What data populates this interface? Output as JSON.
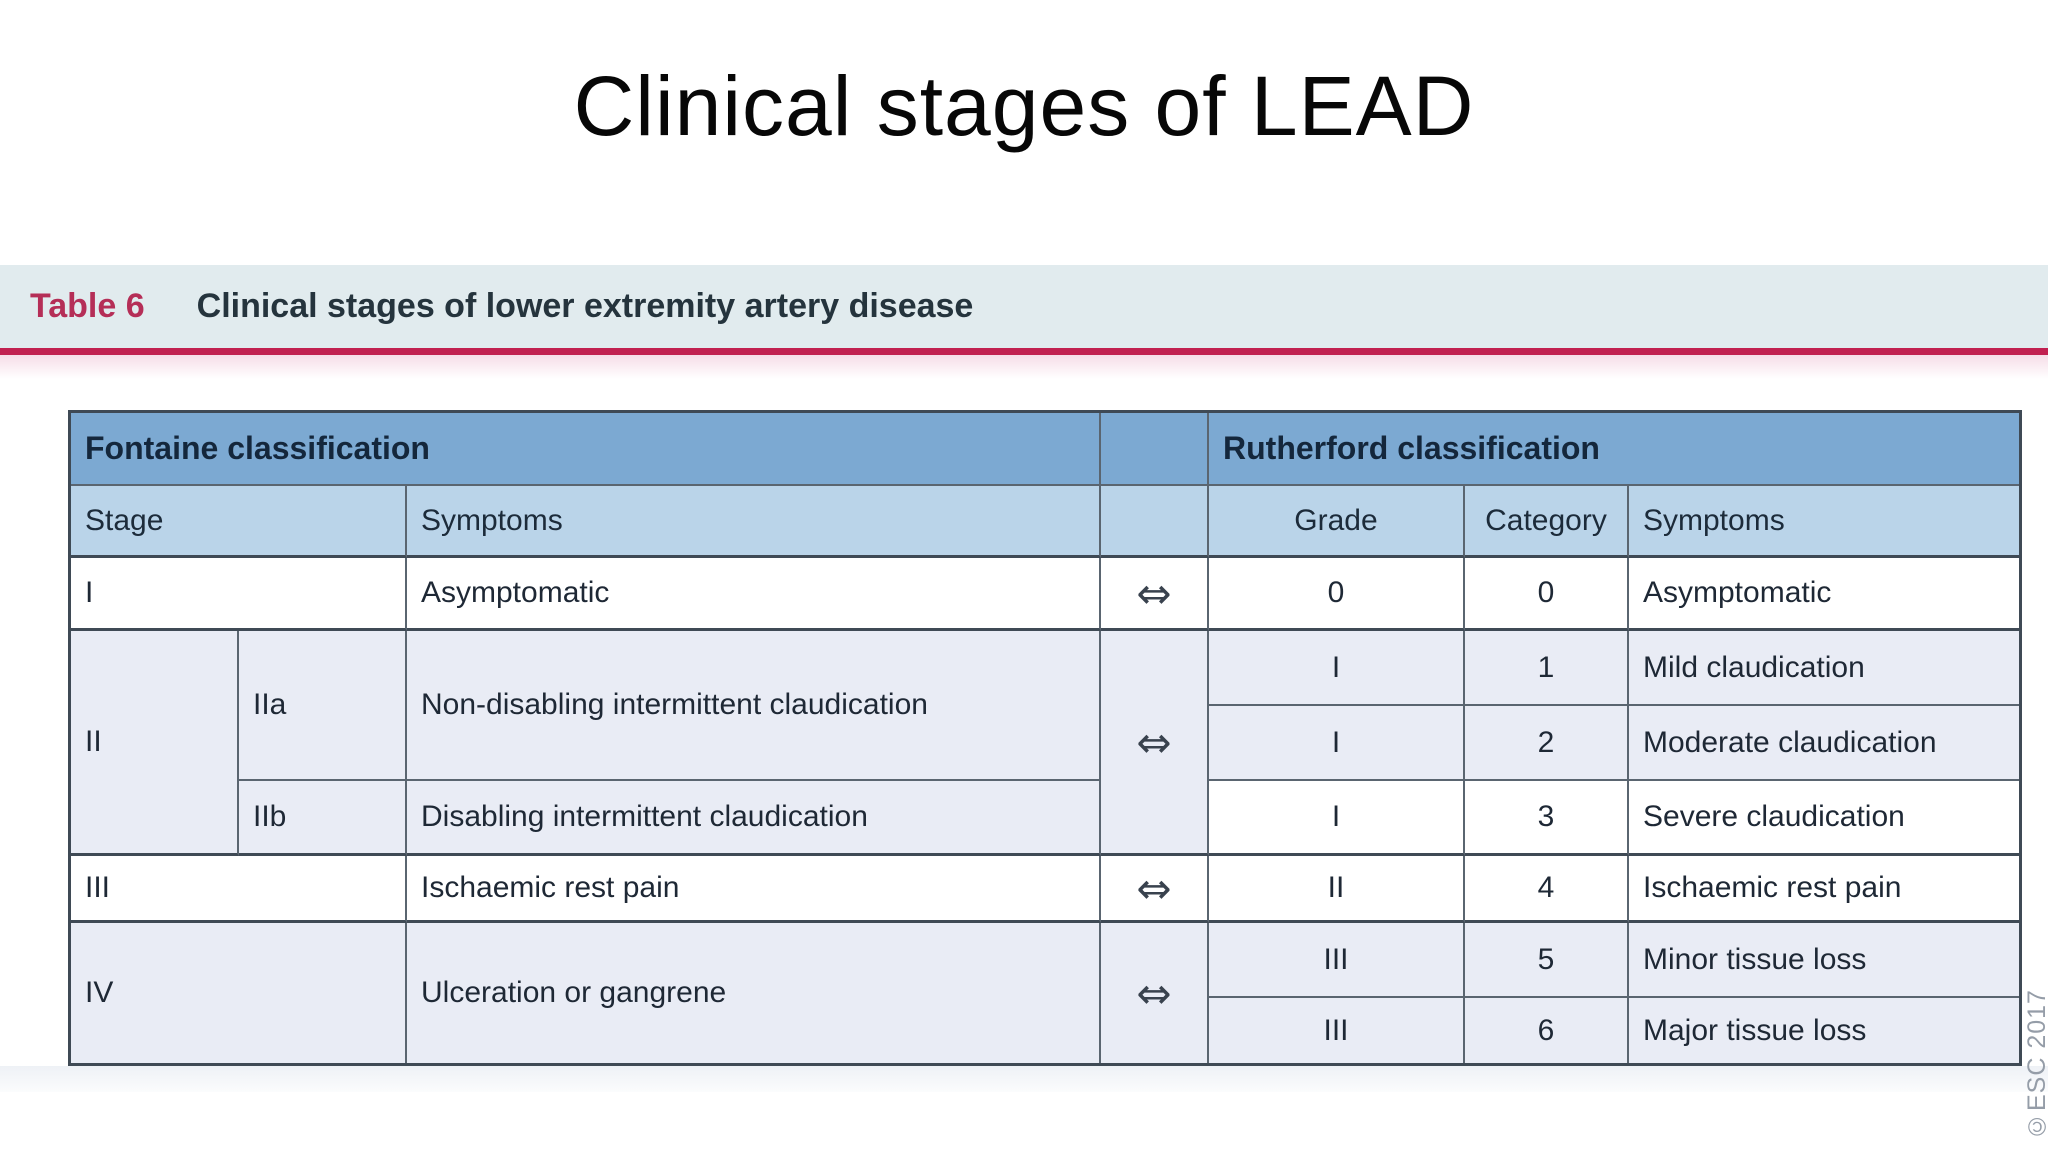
{
  "slide": {
    "title": "Clinical stages of LEAD"
  },
  "figure": {
    "caption_label": "Table 6",
    "caption_text": "Clinical stages of lower extremity artery disease",
    "copyright": "©ESC 2017",
    "arrow": "⇔",
    "colors": {
      "accent_red": "#c12050",
      "caption_label_red": "#b52e57",
      "caption_band_bg": "#e1ebee",
      "header_blue": "#7ca9d2",
      "subheader_blue": "#bad4e9",
      "row_tint_lavender": "#e9ecf5",
      "grid_line": "#4b5561",
      "copyright_gray": "#959da8"
    },
    "table": {
      "fontaine": {
        "header": "Fontaine classification",
        "col_headers": {
          "stage": "Stage",
          "symptoms": "Symptoms"
        },
        "rows": [
          {
            "stage": "I",
            "sub": "",
            "symptoms": "Asymptomatic"
          },
          {
            "stage": "II",
            "sub": "IIa",
            "symptoms": "Non-disabling intermittent claudication"
          },
          {
            "stage": "",
            "sub": "IIb",
            "symptoms": "Disabling intermittent claudication"
          },
          {
            "stage": "III",
            "sub": "",
            "symptoms": "Ischaemic rest pain"
          },
          {
            "stage": "IV",
            "sub": "",
            "symptoms": "Ulceration or gangrene"
          }
        ]
      },
      "rutherford": {
        "header": "Rutherford classification",
        "col_headers": {
          "grade": "Grade",
          "category": "Category",
          "symptoms": "Symptoms"
        },
        "rows": [
          {
            "grade": "0",
            "category": "0",
            "symptoms": "Asymptomatic"
          },
          {
            "grade": "I",
            "category": "1",
            "symptoms": "Mild claudication"
          },
          {
            "grade": "I",
            "category": "2",
            "symptoms": "Moderate claudication"
          },
          {
            "grade": "I",
            "category": "3",
            "symptoms": "Severe claudication"
          },
          {
            "grade": "II",
            "category": "4",
            "symptoms": "Ischaemic rest pain"
          },
          {
            "grade": "III",
            "category": "5",
            "symptoms": "Minor tissue loss"
          },
          {
            "grade": "III",
            "category": "6",
            "symptoms": "Major tissue loss"
          }
        ]
      }
    }
  }
}
